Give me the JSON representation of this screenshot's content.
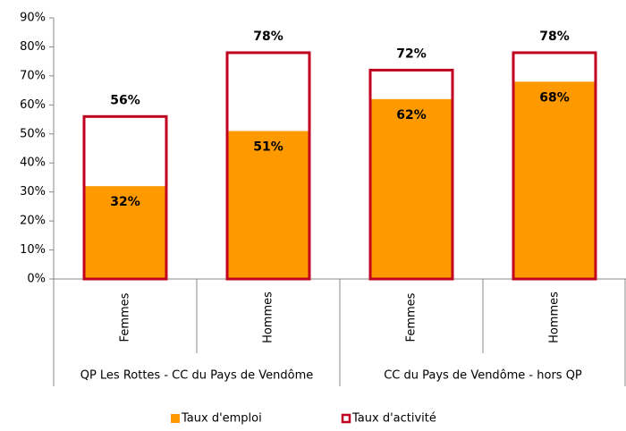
{
  "chart_data": {
    "type": "overlap_bar",
    "categories": [
      "Femmes",
      "Hommes",
      "Femmes",
      "Hommes"
    ],
    "groups": [
      "QP Les Rottes - CC du Pays de Vendôme",
      "CC du Pays de Vendôme - hors QP"
    ],
    "series": [
      {
        "name": "Taux d'emploi",
        "color": "#ff9900",
        "values": [
          32,
          51,
          62,
          68
        ],
        "value_labels": [
          "32%",
          "51%",
          "62%",
          "68%"
        ]
      },
      {
        "name": "Taux d'activité",
        "color": "#c00020",
        "values": [
          56,
          78,
          72,
          78
        ],
        "value_labels": [
          "56%",
          "78%",
          "72%",
          "78%"
        ]
      }
    ],
    "ylim": [
      0,
      90
    ],
    "yticks": [
      {
        "value": 0,
        "label": "0%"
      },
      {
        "value": 10,
        "label": "10%"
      },
      {
        "value": 20,
        "label": "20%"
      },
      {
        "value": 30,
        "label": "30%"
      },
      {
        "value": 40,
        "label": "40%"
      },
      {
        "value": 50,
        "label": "50%"
      },
      {
        "value": 60,
        "label": "60%"
      },
      {
        "value": 70,
        "label": "70%"
      },
      {
        "value": 80,
        "label": "80%"
      },
      {
        "value": 90,
        "label": "90%"
      }
    ],
    "legend": "bottom"
  }
}
